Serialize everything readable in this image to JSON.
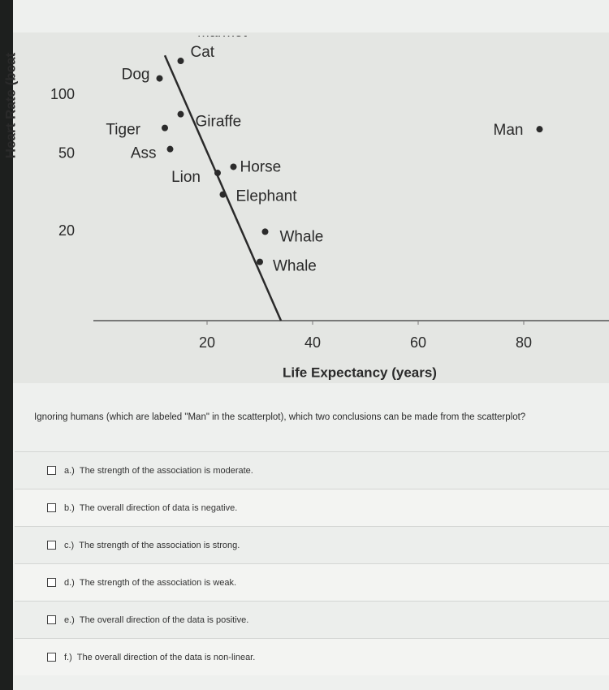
{
  "chart_data": {
    "type": "scatter",
    "y_label": "Heart Rate (beat",
    "x_label": "Life Expectancy (years)",
    "annotation": "Marmot",
    "points": [
      {
        "label": "Dog",
        "x": 11,
        "y": 122
      },
      {
        "label": "Cat",
        "x": 15,
        "y": 150
      },
      {
        "label": "Tiger",
        "x": 12,
        "y": 68
      },
      {
        "label": "Giraffe",
        "x": 15,
        "y": 80
      },
      {
        "label": "Ass",
        "x": 13,
        "y": 53
      },
      {
        "label": "Lion",
        "x": 22,
        "y": 40
      },
      {
        "label": "Horse",
        "x": 25,
        "y": 43
      },
      {
        "label": "Elephant",
        "x": 23,
        "y": 31
      },
      {
        "label": "Whale",
        "x": 31,
        "y": 20
      },
      {
        "label": "Whale",
        "x": 30,
        "y": 14
      },
      {
        "label": "Man",
        "x": 83,
        "y": 67
      }
    ],
    "trend_line": {
      "x": [
        12,
        34
      ],
      "y": [
        160,
        7
      ]
    },
    "color": "#2b2b2b",
    "log_y": true,
    "xlim": [
      0,
      96
    ],
    "xticks": [
      20,
      40,
      60,
      80
    ],
    "ylim": [
      7,
      200
    ],
    "yticks": [
      20,
      50,
      100
    ]
  },
  "question": "Ignoring humans (which are labeled \"Man\" in the scatterplot), which two conclusions can be made from the scatterplot?",
  "options": [
    {
      "letter": "a.)",
      "text": "The strength of the association is moderate."
    },
    {
      "letter": "b.)",
      "text": "The overall direction of data is negative."
    },
    {
      "letter": "c.)",
      "text": "The strength of the association is strong."
    },
    {
      "letter": "d.)",
      "text": "The strength of the association is weak."
    },
    {
      "letter": "e.)",
      "text": "The overall direction of the data is positive."
    },
    {
      "letter": "f.)",
      "text": "The overall direction of the data is non-linear."
    }
  ]
}
